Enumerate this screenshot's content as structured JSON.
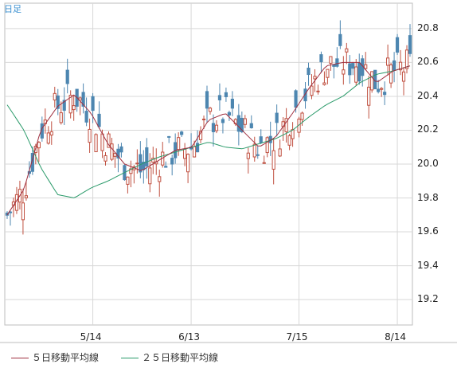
{
  "period_label": "日足",
  "legend": {
    "ma5_label": "５日移動平均線",
    "ma25_label": "２５日移動平均線"
  },
  "colors": {
    "up": "#c05040",
    "down": "#4d86b0",
    "ma5": "#a03040",
    "ma25": "#2a9a6a",
    "grid": "#d8d8d8",
    "frame": "#bdbdbd"
  },
  "chart_data": {
    "type": "candlestick",
    "y_ticks": [
      "19.2",
      "19.4",
      "19.6",
      "19.8",
      "20.0",
      "20.2",
      "20.4",
      "20.6",
      "20.8"
    ],
    "ylim": [
      19.05,
      20.95
    ],
    "x_ticks": [
      "5/14",
      "6/13",
      "7/15",
      "8/14"
    ],
    "x_tick_index": [
      27,
      58,
      92,
      123
    ],
    "series": [
      {
        "name": "５日移動平均線",
        "values": [
          19.7,
          19.85,
          20.2,
          20.34,
          20.41,
          20.3,
          20.12,
          20.0,
          19.96,
          20.02,
          20.08,
          20.1,
          20.26,
          20.3,
          20.2,
          20.1,
          20.16,
          20.3,
          20.45,
          20.58,
          20.6,
          20.6,
          20.48,
          20.55,
          20.58
        ]
      },
      {
        "name": "２５日移動平均線",
        "values": [
          20.35,
          20.2,
          19.98,
          19.82,
          19.8,
          19.86,
          19.9,
          19.95,
          20.0,
          20.04,
          20.07,
          20.1,
          20.13,
          20.1,
          20.09,
          20.12,
          20.15,
          20.2,
          20.28,
          20.35,
          20.4,
          20.48,
          20.53,
          20.55,
          20.58
        ]
      }
    ]
  }
}
